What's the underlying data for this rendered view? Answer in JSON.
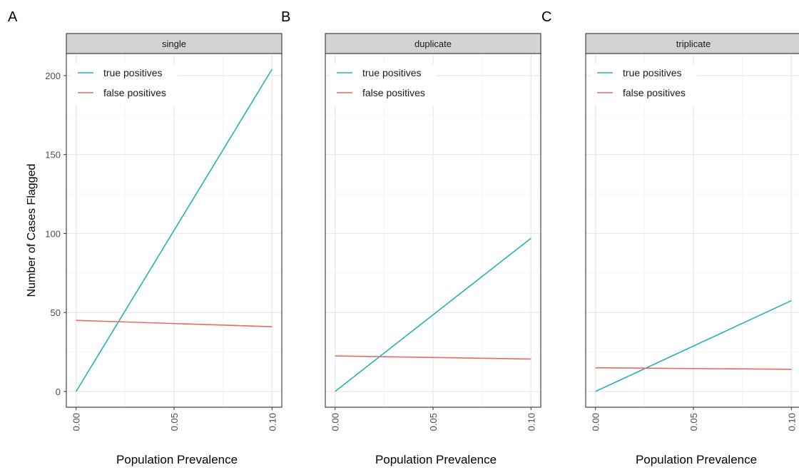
{
  "colors": {
    "true_positives": "#23B3B5",
    "false_positives": "#EB6A60",
    "strip_fill": "#D3D3D3",
    "grid": "#EBEBEB"
  },
  "shared": {
    "ylabel": "Number of Cases Flagged",
    "y_ticks": [
      "0",
      "50",
      "100",
      "150",
      "200"
    ],
    "y_tick_values": [
      0,
      50,
      100,
      150,
      200
    ],
    "x_ticks": [
      "0.00",
      "0.05",
      "0.10"
    ],
    "x_tick_values": [
      0,
      0.05,
      0.1
    ],
    "xlim": [
      -0.005,
      0.105
    ],
    "ylim": [
      -10,
      214
    ],
    "legend_placement": "top-left inside"
  },
  "panels": [
    {
      "letter": "A",
      "strip": "single",
      "xlabel": "Population Prevalence"
    },
    {
      "letter": "B",
      "strip": "duplicate",
      "xlabel": "Population Prevalence"
    },
    {
      "letter": "C",
      "strip": "triplicate",
      "xlabel": "Population Prevalence"
    }
  ],
  "chart_data": [
    {
      "type": "line",
      "panel": "A",
      "title": "single",
      "xlabel": "Population Prevalence",
      "ylabel": "Number of Cases Flagged",
      "x": [
        0.0,
        0.1
      ],
      "series": [
        {
          "name": "true positives",
          "values": [
            0,
            204
          ]
        },
        {
          "name": "false positives",
          "values": [
            45,
            41
          ]
        }
      ],
      "ylim": [
        -10,
        214
      ],
      "grid": true,
      "legend": "top-left"
    },
    {
      "type": "line",
      "panel": "B",
      "title": "duplicate",
      "xlabel": "Population Prevalence",
      "ylabel": "",
      "x": [
        0.0,
        0.1
      ],
      "series": [
        {
          "name": "true positives",
          "values": [
            0,
            97
          ]
        },
        {
          "name": "false positives",
          "values": [
            22.5,
            20.5
          ]
        }
      ],
      "ylim": [
        -10,
        214
      ],
      "grid": true,
      "legend": "top-left"
    },
    {
      "type": "line",
      "panel": "C",
      "title": "triplicate",
      "xlabel": "Population Prevalence",
      "ylabel": "",
      "x": [
        0.0,
        0.1
      ],
      "series": [
        {
          "name": "true positives",
          "values": [
            0,
            57.5
          ]
        },
        {
          "name": "false positives",
          "values": [
            15,
            14
          ]
        }
      ],
      "ylim": [
        -10,
        214
      ],
      "grid": true,
      "legend": "top-left"
    }
  ]
}
